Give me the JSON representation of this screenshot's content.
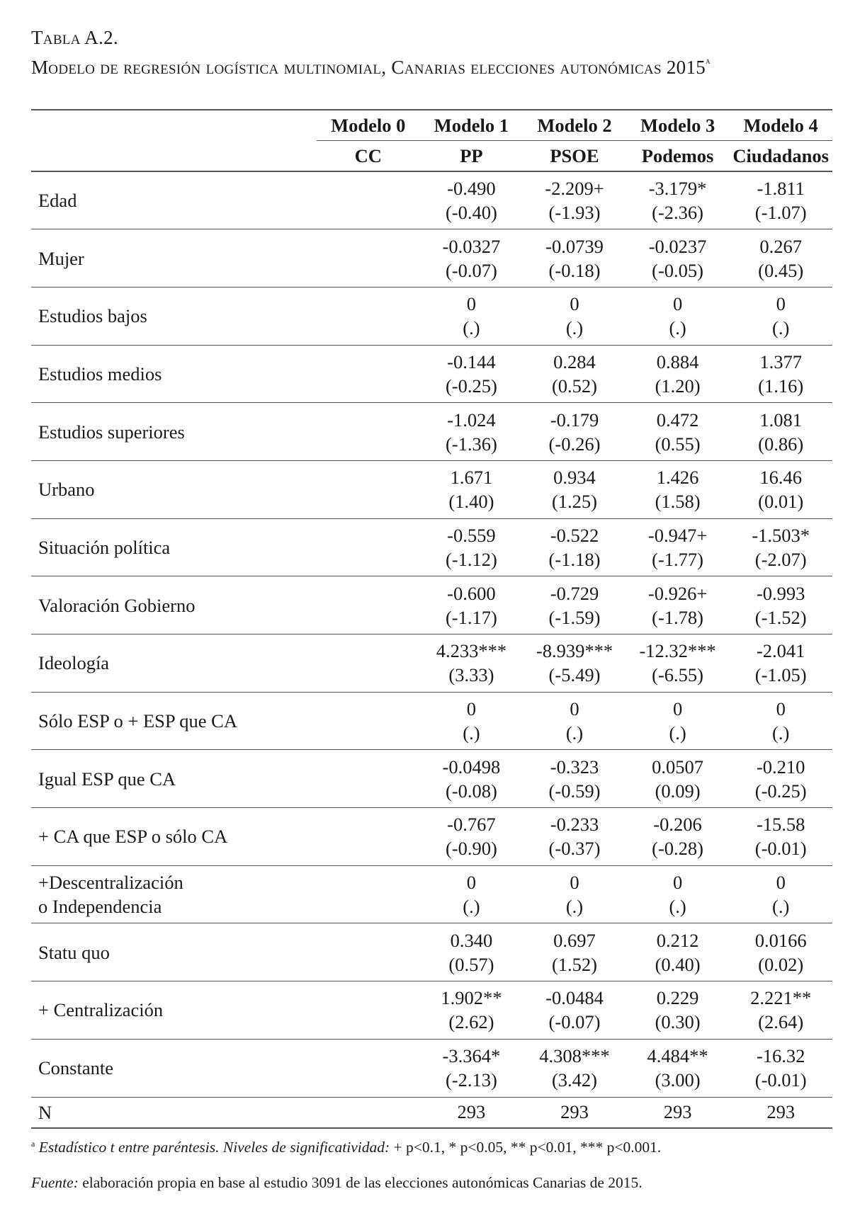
{
  "title": {
    "label": "Tabla A.2.",
    "caption": "Modelo de regresión logística multinomial, Canarias elecciones autonómicas 2015",
    "caption_marker": "a"
  },
  "table": {
    "models": [
      {
        "model": "Modelo 0",
        "party": "CC"
      },
      {
        "model": "Modelo 1",
        "party": "PP"
      },
      {
        "model": "Modelo 2",
        "party": "PSOE"
      },
      {
        "model": "Modelo 3",
        "party": "Podemos"
      },
      {
        "model": "Modelo 4",
        "party": "Ciudadanos"
      }
    ],
    "rows": [
      {
        "label": "Edad",
        "coef": [
          "",
          "-0.490",
          "-2.209+",
          "-3.179*",
          "-1.811"
        ],
        "t": [
          "",
          "(-0.40)",
          "(-1.93)",
          "(-2.36)",
          "(-1.07)"
        ]
      },
      {
        "label": "Mujer",
        "coef": [
          "",
          "-0.0327",
          "-0.0739",
          "-0.0237",
          "0.267"
        ],
        "t": [
          "",
          "(-0.07)",
          "(-0.18)",
          "(-0.05)",
          "(0.45)"
        ]
      },
      {
        "label": "Estudios bajos",
        "coef": [
          "",
          "0",
          "0",
          "0",
          "0"
        ],
        "t": [
          "",
          "(.)",
          "(.)",
          "(.)",
          "(.)"
        ]
      },
      {
        "label": "Estudios medios",
        "coef": [
          "",
          "-0.144",
          "0.284",
          "0.884",
          "1.377"
        ],
        "t": [
          "",
          "(-0.25)",
          "(0.52)",
          "(1.20)",
          "(1.16)"
        ]
      },
      {
        "label": "Estudios superiores",
        "coef": [
          "",
          "-1.024",
          "-0.179",
          "0.472",
          "1.081"
        ],
        "t": [
          "",
          "(-1.36)",
          "(-0.26)",
          "(0.55)",
          "(0.86)"
        ]
      },
      {
        "label": "Urbano",
        "coef": [
          "",
          "1.671",
          "0.934",
          "1.426",
          "16.46"
        ],
        "t": [
          "",
          "(1.40)",
          "(1.25)",
          "(1.58)",
          "(0.01)"
        ]
      },
      {
        "label": "Situación política",
        "coef": [
          "",
          "-0.559",
          "-0.522",
          "-0.947+",
          "-1.503*"
        ],
        "t": [
          "",
          "(-1.12)",
          "(-1.18)",
          "(-1.77)",
          "(-2.07)"
        ]
      },
      {
        "label": "Valoración Gobierno",
        "coef": [
          "",
          "-0.600",
          "-0.729",
          "-0.926+",
          "-0.993"
        ],
        "t": [
          "",
          "(-1.17)",
          "(-1.59)",
          "(-1.78)",
          "(-1.52)"
        ]
      },
      {
        "label": "Ideología",
        "coef": [
          "",
          "4.233***",
          "-8.939***",
          "-12.32***",
          "-2.041"
        ],
        "t": [
          "",
          "(3.33)",
          "(-5.49)",
          "(-6.55)",
          "(-1.05)"
        ]
      },
      {
        "label": "Sólo ESP o + ESP que CA",
        "coef": [
          "",
          "0",
          "0",
          "0",
          "0"
        ],
        "t": [
          "",
          "(.)",
          "(.)",
          "(.)",
          "(.)"
        ]
      },
      {
        "label": "Igual ESP que CA",
        "coef": [
          "",
          "-0.0498",
          "-0.323",
          "0.0507",
          "-0.210"
        ],
        "t": [
          "",
          "(-0.08)",
          "(-0.59)",
          "(0.09)",
          "(-0.25)"
        ]
      },
      {
        "label": "+ CA que ESP o sólo CA",
        "coef": [
          "",
          "-0.767",
          "-0.233",
          "-0.206",
          "-15.58"
        ],
        "t": [
          "",
          "(-0.90)",
          "(-0.37)",
          "(-0.28)",
          "(-0.01)"
        ]
      },
      {
        "label": "+Descentralización o Independencia",
        "coef": [
          "",
          "0",
          "0",
          "0",
          "0"
        ],
        "t": [
          "",
          "(.)",
          "(.)",
          "(.)",
          "(.)"
        ]
      },
      {
        "label": "Statu quo",
        "coef": [
          "",
          "0.340",
          "0.697",
          "0.212",
          "0.0166"
        ],
        "t": [
          "",
          "(0.57)",
          "(1.52)",
          "(0.40)",
          "(0.02)"
        ]
      },
      {
        "label": "+ Centralización",
        "coef": [
          "",
          "1.902**",
          "-0.0484",
          "0.229",
          "2.221**"
        ],
        "t": [
          "",
          "(2.62)",
          "(-0.07)",
          "(0.30)",
          "(2.64)"
        ]
      },
      {
        "label": "Constante",
        "coef": [
          "",
          "-3.364*",
          "4.308***",
          "4.484**",
          "-16.32"
        ],
        "t": [
          "",
          "(-2.13)",
          "(3.42)",
          "(3.00)",
          "(-0.01)"
        ]
      }
    ],
    "n_row": {
      "label": "N",
      "values": [
        "",
        "293",
        "293",
        "293",
        "293"
      ]
    }
  },
  "notes": {
    "marker": "a",
    "significance_italic": "Estadístico t entre paréntesis. Niveles de significatividad:",
    "significance_levels": " + p<0.1, * p<0.05, ** p<0.01, *** p<0.001.",
    "source_label": "Fuente:",
    "source_text": " elaboración propia en base al estudio 3091 de las elecciones autonómicas Canarias de 2015."
  }
}
